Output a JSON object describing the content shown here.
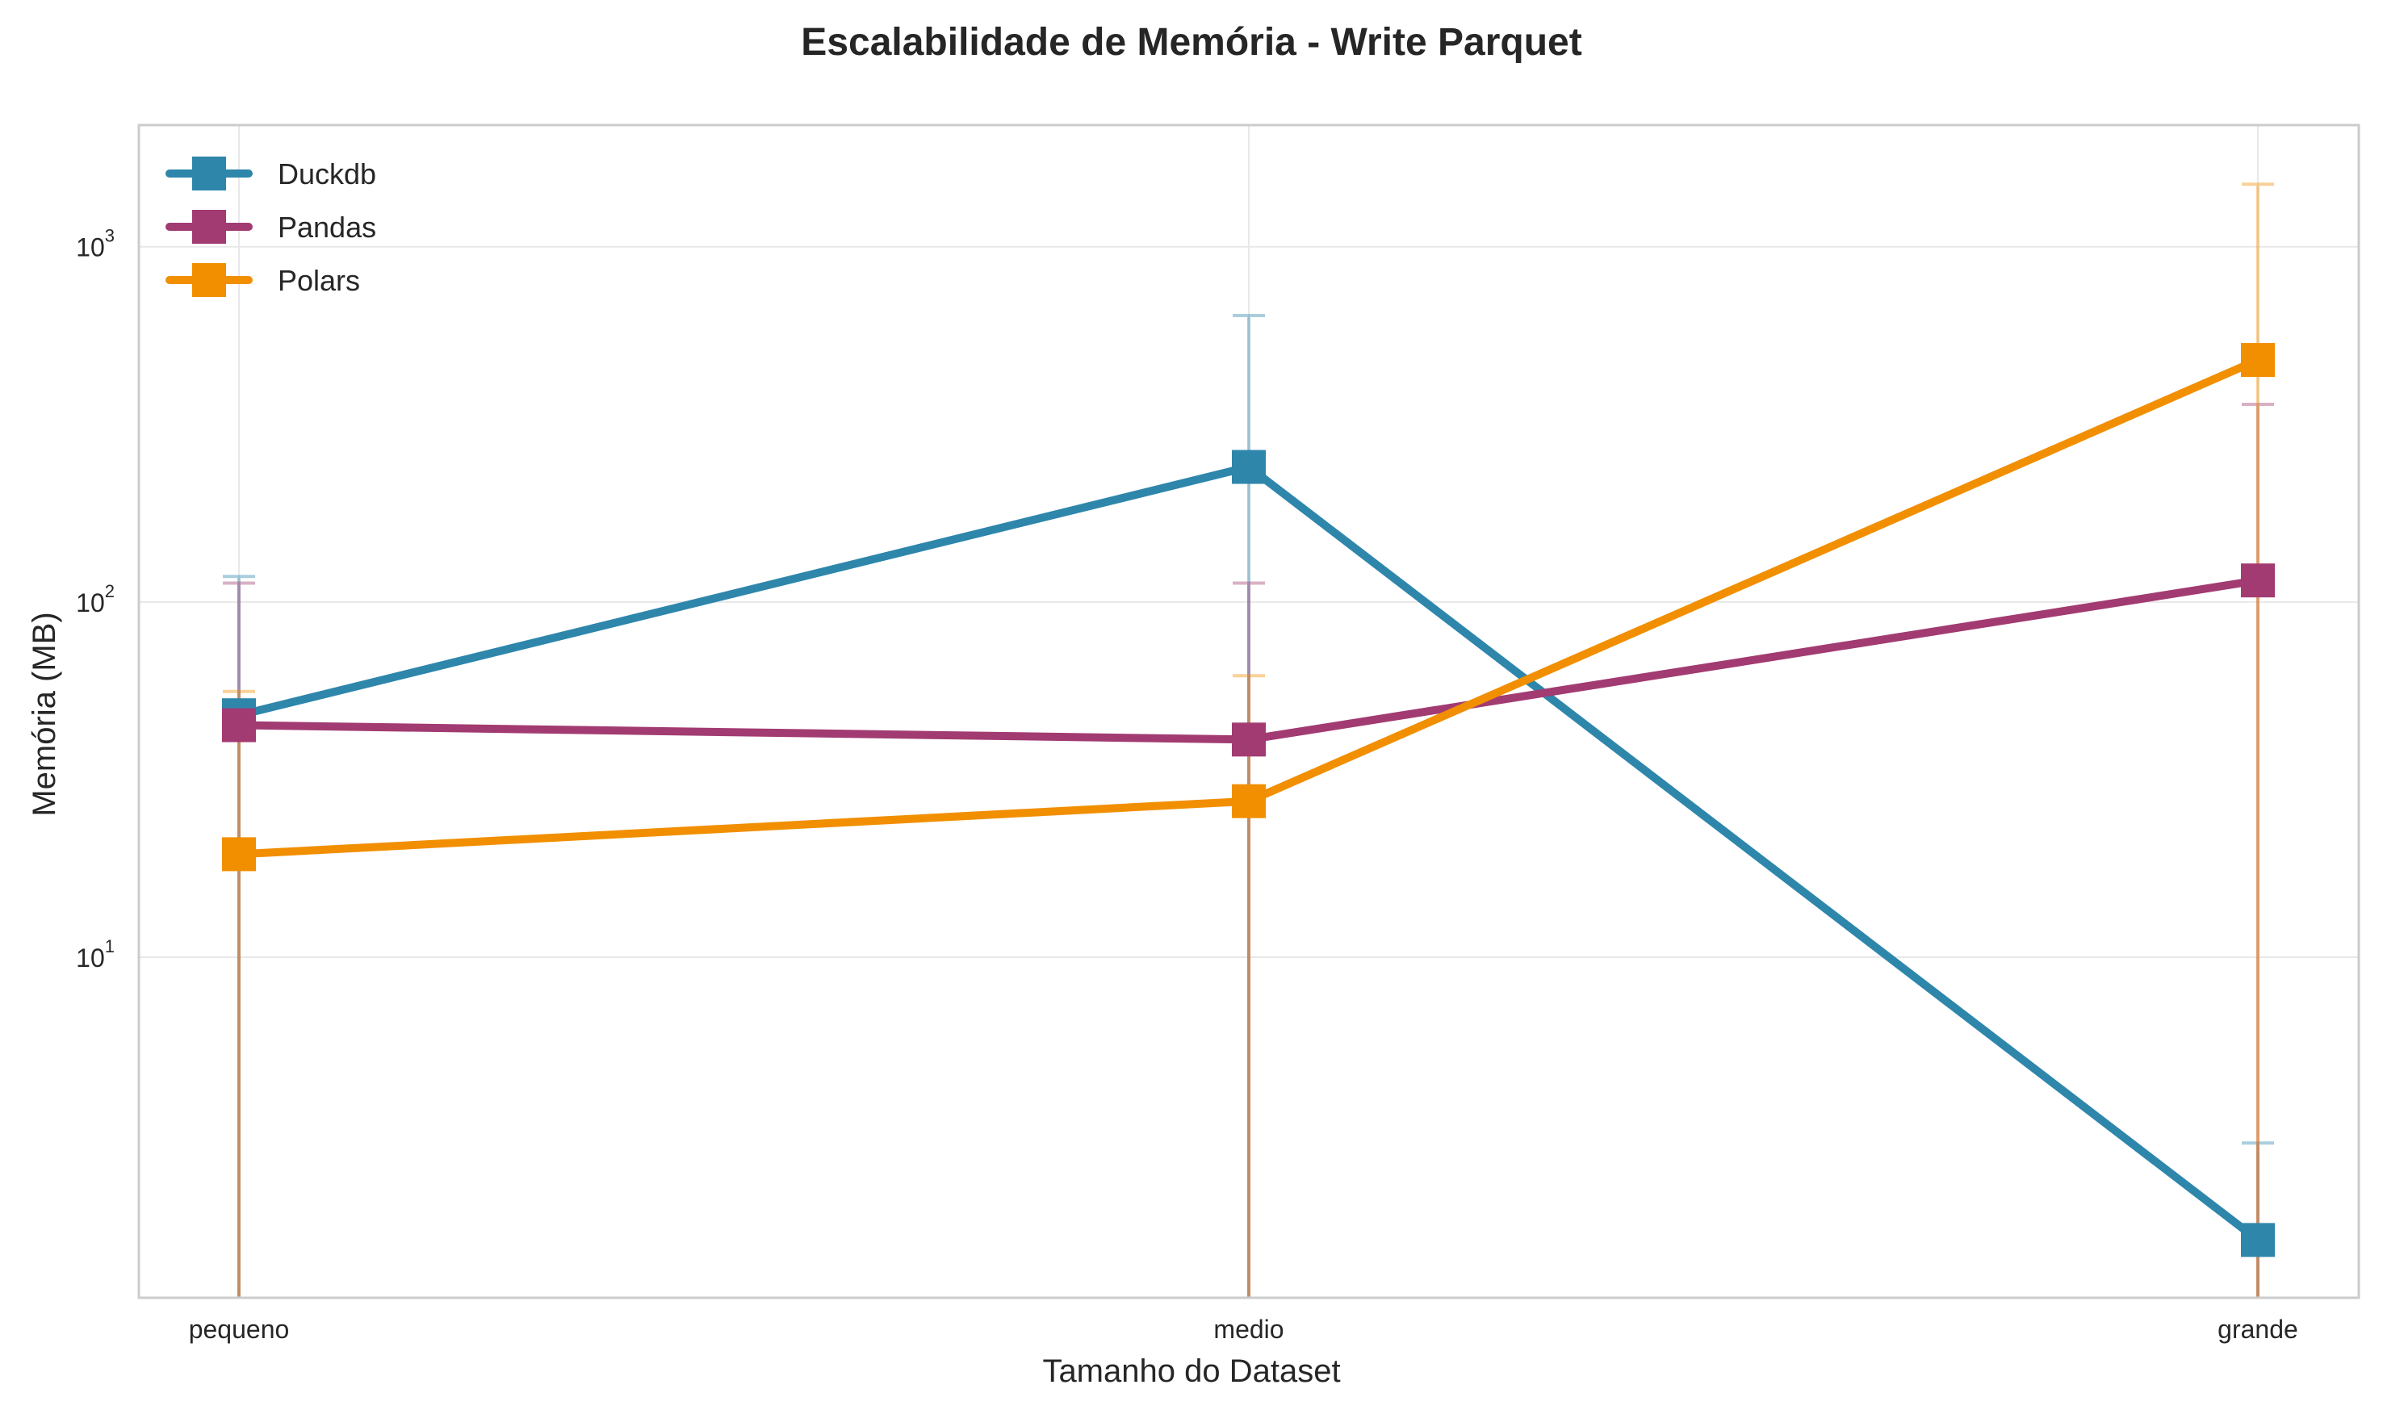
{
  "chart_data": {
    "type": "line",
    "title": "Escalabilidade de Memória - Write Parquet",
    "xlabel": "Tamanho do Dataset",
    "ylabel": "Memória (MB)",
    "yscale": "log",
    "ylim": [
      1.1,
      2200
    ],
    "categories": [
      "pequeno",
      "medio",
      "grande"
    ],
    "y_ticks": [
      {
        "value": 10,
        "base": "10",
        "exp": "1"
      },
      {
        "value": 100,
        "base": "10",
        "exp": "2"
      },
      {
        "value": 1000,
        "base": "10",
        "exp": "3"
      }
    ],
    "grid": true,
    "legend_position": "top-left",
    "series": [
      {
        "name": "Duckdb",
        "color": "#2E86AB",
        "values": [
          48,
          240,
          1.6
        ],
        "error_upper": [
          118,
          640,
          3.0
        ],
        "error_lower": [
          0.01,
          0.01,
          0.01
        ]
      },
      {
        "name": "Pandas",
        "color": "#A23B72",
        "values": [
          45,
          41,
          115
        ],
        "error_upper": [
          113,
          113,
          360
        ],
        "error_lower": [
          0.01,
          0.01,
          0.01
        ]
      },
      {
        "name": "Polars",
        "color": "#F18F01",
        "values": [
          19.5,
          27.5,
          480
        ],
        "error_upper": [
          56,
          62,
          1500
        ],
        "error_lower": [
          0.01,
          0.01,
          0.01
        ]
      }
    ]
  }
}
